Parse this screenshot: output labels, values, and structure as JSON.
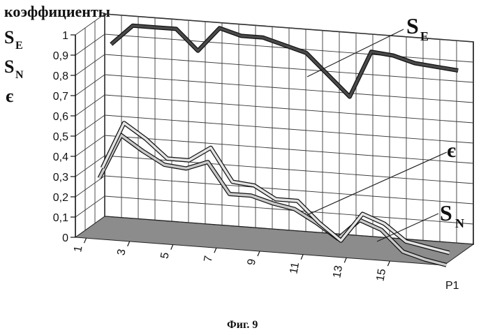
{
  "chart_data": {
    "type": "line",
    "title": "коэффициенты",
    "caption": "Фиг. 9",
    "ylim": [
      0,
      1
    ],
    "y_ticks": [
      "0",
      "0,1",
      "0,2",
      "0,3",
      "0,4",
      "0,5",
      "0,6",
      "0,7",
      "0,8",
      "0,9",
      "1"
    ],
    "x": [
      1,
      2,
      3,
      4,
      5,
      6,
      7,
      8,
      9,
      10,
      11,
      12,
      13,
      14,
      15,
      16,
      17
    ],
    "x_ticks": [
      "1",
      "3",
      "5",
      "7",
      "9",
      "11",
      "13",
      "15"
    ],
    "depth_label": "P1",
    "series": [
      {
        "name_main": "S",
        "name_sub": "E",
        "color": "#4a4a4a",
        "values": [
          0.87,
          0.97,
          0.97,
          0.97,
          0.87,
          0.99,
          0.96,
          0.96,
          0.93,
          0.9,
          0.8,
          0.7,
          0.93,
          0.92,
          0.89,
          0.88,
          0.87
        ]
      },
      {
        "name_main": "є",
        "name_sub": "",
        "color": "#c9c9c9",
        "values": [
          0.25,
          0.47,
          0.4,
          0.34,
          0.33,
          0.37,
          0.22,
          0.22,
          0.19,
          0.17,
          0.11,
          0.04,
          0.14,
          0.1,
          0.0,
          -0.03,
          -0.05
        ]
      },
      {
        "name_main": "S",
        "name_sub": "N",
        "color": "#e3e3e3",
        "values": [
          0.29,
          0.52,
          0.45,
          0.36,
          0.36,
          0.43,
          0.27,
          0.26,
          0.2,
          0.2,
          0.1,
          0.02,
          0.16,
          0.12,
          0.04,
          0.02,
          0.0
        ]
      }
    ]
  }
}
